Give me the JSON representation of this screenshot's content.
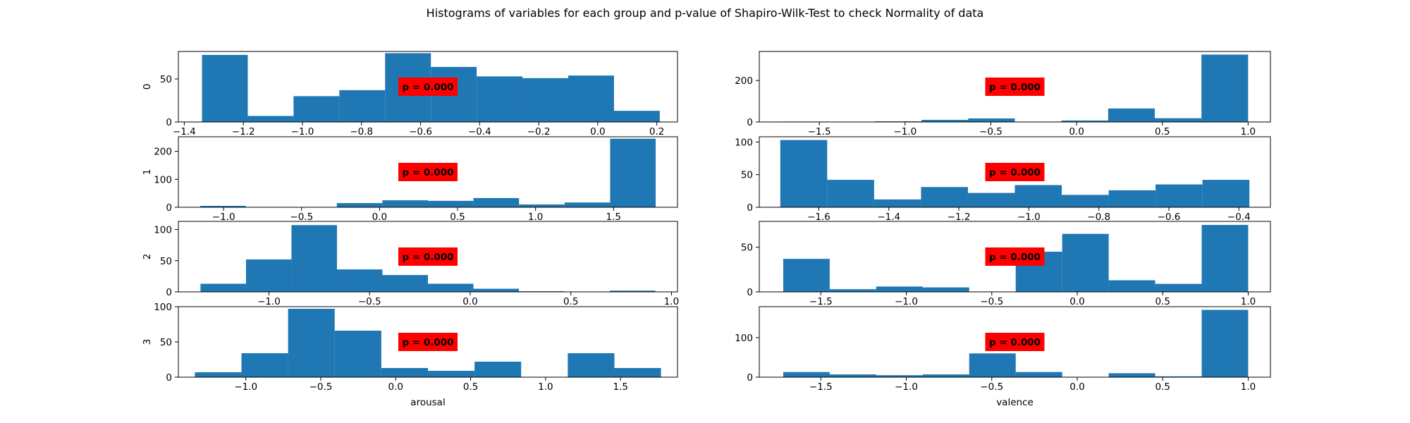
{
  "title": "Histograms of variables for each group and p-value of Shapiro-Wilk-Test to check Normality of data",
  "colors": {
    "bar": "#1f77b4",
    "pbox": "#ff0000",
    "axis": "#000000"
  },
  "chart_data": [
    {
      "type": "bar",
      "row": 0,
      "col": 0,
      "ylabel": "0",
      "xlabel": "",
      "xlim": [
        -1.42,
        0.27
      ],
      "ylim": [
        0,
        82
      ],
      "xticks": [
        -1.4,
        -1.2,
        -1.0,
        -0.8,
        -0.6,
        -0.4,
        -0.2,
        0.0,
        0.2
      ],
      "xtick_labels": [
        "−1.4",
        "−1.2",
        "−1.0",
        "−0.8",
        "−0.6",
        "−0.4",
        "−0.2",
        "0.0",
        "0.2"
      ],
      "yticks": [
        0,
        50
      ],
      "ytick_labels": [
        "0",
        "50"
      ],
      "bin_edges": [
        -1.34,
        -1.185,
        -1.03,
        -0.875,
        -0.72,
        -0.565,
        -0.41,
        -0.255,
        -0.1,
        0.055,
        0.21
      ],
      "counts": [
        78,
        7,
        30,
        37,
        80,
        64,
        53,
        51,
        54,
        13
      ],
      "annotation": "p = 0.000"
    },
    {
      "type": "bar",
      "row": 0,
      "col": 1,
      "ylabel": "",
      "xlabel": "",
      "xlim": [
        -1.85,
        1.13
      ],
      "ylim": [
        0,
        340
      ],
      "xticks": [
        -1.5,
        -1.0,
        -0.5,
        0.0,
        0.5,
        1.0
      ],
      "xtick_labels": [
        "−1.5",
        "−1.0",
        "−0.5",
        "0.0",
        "0.5",
        "1.0"
      ],
      "yticks": [
        0,
        200
      ],
      "ytick_labels": [
        "0",
        "200"
      ],
      "bin_edges": [
        -1.72,
        -1.448,
        -1.176,
        -0.904,
        -0.632,
        -0.36,
        -0.088,
        0.184,
        0.456,
        0.728,
        1.0
      ],
      "counts": [
        2,
        0,
        3,
        10,
        17,
        0,
        7,
        65,
        18,
        325
      ],
      "annotation": "p = 0.000"
    },
    {
      "type": "bar",
      "row": 1,
      "col": 0,
      "ylabel": "1",
      "xlabel": "",
      "xlim": [
        -1.29,
        1.91
      ],
      "ylim": [
        0,
        252
      ],
      "xticks": [
        -1.0,
        -0.5,
        0.0,
        0.5,
        1.0,
        1.5
      ],
      "xtick_labels": [
        "−1.0",
        "−0.5",
        "0.0",
        "0.5",
        "1.0",
        "1.5"
      ],
      "yticks": [
        0,
        100,
        200
      ],
      "ytick_labels": [
        "0",
        "100",
        "200"
      ],
      "bin_edges": [
        -1.15,
        -0.858,
        -0.566,
        -0.274,
        0.018,
        0.31,
        0.602,
        0.894,
        1.186,
        1.478,
        1.77
      ],
      "counts": [
        5,
        0,
        0,
        15,
        25,
        23,
        33,
        10,
        17,
        245
      ],
      "annotation": "p = 0.000"
    },
    {
      "type": "bar",
      "row": 1,
      "col": 1,
      "ylabel": "",
      "xlabel": "",
      "xlim": [
        -1.77,
        -0.31
      ],
      "ylim": [
        0,
        108
      ],
      "xticks": [
        -1.6,
        -1.4,
        -1.2,
        -1.0,
        -0.8,
        -0.6,
        -0.4
      ],
      "xtick_labels": [
        "−1.6",
        "−1.4",
        "−1.2",
        "−1.0",
        "−0.8",
        "−0.6",
        "−0.4"
      ],
      "yticks": [
        0,
        50,
        100
      ],
      "ytick_labels": [
        "0",
        "50",
        "100"
      ],
      "bin_edges": [
        -1.71,
        -1.576,
        -1.442,
        -1.308,
        -1.174,
        -1.04,
        -0.906,
        -0.772,
        -0.638,
        -0.504,
        -0.37
      ],
      "counts": [
        103,
        42,
        12,
        31,
        22,
        34,
        19,
        26,
        35,
        42
      ],
      "annotation": "p = 0.000"
    },
    {
      "type": "bar",
      "row": 2,
      "col": 0,
      "ylabel": "2",
      "xlabel": "",
      "xlim": [
        -1.45,
        1.03
      ],
      "ylim": [
        0,
        113
      ],
      "xticks": [
        -1.0,
        -0.5,
        0.0,
        0.5,
        1.0
      ],
      "xtick_labels": [
        "−1.0",
        "−0.5",
        "0.0",
        "0.5",
        "1.0"
      ],
      "yticks": [
        0,
        50,
        100
      ],
      "ytick_labels": [
        "0",
        "50",
        "100"
      ],
      "bin_edges": [
        -1.34,
        -1.114,
        -0.888,
        -0.662,
        -0.436,
        -0.21,
        0.016,
        0.242,
        0.468,
        0.694,
        0.92
      ],
      "counts": [
        13,
        52,
        107,
        36,
        27,
        13,
        5,
        1,
        0,
        2
      ],
      "annotation": "p = 0.000"
    },
    {
      "type": "bar",
      "row": 2,
      "col": 1,
      "ylabel": "",
      "xlabel": "",
      "xlim": [
        -1.86,
        1.13
      ],
      "ylim": [
        0,
        79
      ],
      "xticks": [
        -1.5,
        -1.0,
        -0.5,
        0.0,
        0.5,
        1.0
      ],
      "xtick_labels": [
        "−1.5",
        "−1.0",
        "−0.5",
        "0.0",
        "0.5",
        "1.0"
      ],
      "yticks": [
        0,
        50
      ],
      "ytick_labels": [
        "0",
        "50"
      ],
      "bin_edges": [
        -1.72,
        -1.448,
        -1.176,
        -0.904,
        -0.632,
        -0.36,
        -0.088,
        0.184,
        0.456,
        0.728,
        1.0
      ],
      "counts": [
        37,
        3,
        6,
        5,
        0,
        45,
        65,
        13,
        9,
        75
      ],
      "annotation": "p = 0.000"
    },
    {
      "type": "bar",
      "row": 3,
      "col": 0,
      "ylabel": "3",
      "xlabel": "arousal",
      "xlim": [
        -1.45,
        1.88
      ],
      "ylim": [
        0,
        100
      ],
      "xticks": [
        -1.0,
        -0.5,
        0.0,
        0.5,
        1.0,
        1.5
      ],
      "xtick_labels": [
        "−1.0",
        "−0.5",
        "0.0",
        "0.5",
        "1.0",
        "1.5"
      ],
      "yticks": [
        0,
        50,
        100
      ],
      "ytick_labels": [
        "0",
        "50",
        "100"
      ],
      "bin_edges": [
        -1.34,
        -1.029,
        -0.718,
        -0.407,
        -0.096,
        0.215,
        0.526,
        0.837,
        1.148,
        1.459,
        1.77
      ],
      "counts": [
        7,
        34,
        97,
        66,
        13,
        9,
        22,
        0,
        34,
        13
      ],
      "annotation": "p = 0.000"
    },
    {
      "type": "bar",
      "row": 3,
      "col": 1,
      "ylabel": "",
      "xlabel": "valence",
      "xlim": [
        -1.86,
        1.13
      ],
      "ylim": [
        0,
        178
      ],
      "xticks": [
        -1.5,
        -1.0,
        -0.5,
        0.0,
        0.5,
        1.0
      ],
      "xtick_labels": [
        "−1.5",
        "−1.0",
        "−0.5",
        "0.0",
        "0.5",
        "1.0"
      ],
      "yticks": [
        0,
        100
      ],
      "ytick_labels": [
        "0",
        "100"
      ],
      "bin_edges": [
        -1.72,
        -1.448,
        -1.176,
        -0.904,
        -0.632,
        -0.36,
        -0.088,
        0.184,
        0.456,
        0.728,
        1.0
      ],
      "counts": [
        13,
        7,
        5,
        7,
        60,
        13,
        0,
        10,
        2,
        170
      ],
      "annotation": "p = 0.000"
    }
  ]
}
